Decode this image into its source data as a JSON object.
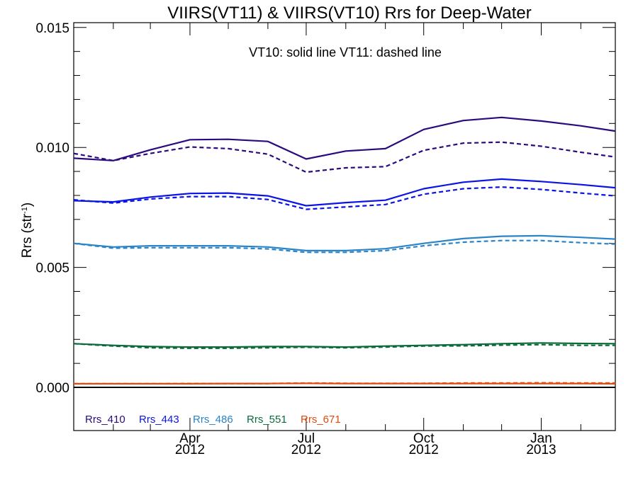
{
  "chart_data": {
    "type": "line",
    "title": "VIIRS(VT11) & VIIRS(VT10)  Rrs for Deep-Water",
    "annotation": "VT10: solid line   VT11: dashed line",
    "ylabel": "Rrs (str",
    "ylabel_sup": "-1",
    "ylabel_close": ")",
    "ylim": [
      -0.0018,
      0.0152
    ],
    "xlim": [
      "2012-01-01",
      "2013-02-28"
    ],
    "yticks": [
      {
        "value": 0.0,
        "label": "0.000"
      },
      {
        "value": 0.005,
        "label": "0.005"
      },
      {
        "value": 0.01,
        "label": "0.010"
      },
      {
        "value": 0.015,
        "label": "0.015"
      }
    ],
    "xticks": [
      {
        "date": "2012-04-01",
        "month": "Apr",
        "year": "2012"
      },
      {
        "date": "2012-07-01",
        "month": "Jul",
        "year": "2012"
      },
      {
        "date": "2012-10-01",
        "month": "Oct",
        "year": "2012"
      },
      {
        "date": "2013-01-01",
        "month": "Jan",
        "year": "2013"
      }
    ],
    "zero_line": 0.0,
    "x": [
      "2012-01-01",
      "2012-02-01",
      "2012-03-01",
      "2012-04-01",
      "2012-05-01",
      "2012-06-01",
      "2012-07-01",
      "2012-08-01",
      "2012-09-01",
      "2012-10-01",
      "2012-11-01",
      "2012-12-01",
      "2013-01-01",
      "2013-02-01",
      "2013-02-28"
    ],
    "series": [
      {
        "name": "Rrs_410",
        "color": "#2a0a7e",
        "vt10": [
          0.00955,
          0.00945,
          0.0099,
          0.01032,
          0.01034,
          0.01025,
          0.00952,
          0.00985,
          0.00995,
          0.01075,
          0.01112,
          0.01125,
          0.0111,
          0.0109,
          0.01068
        ],
        "vt11": [
          0.00975,
          0.00945,
          0.00975,
          0.01002,
          0.00995,
          0.00972,
          0.00897,
          0.00915,
          0.0092,
          0.00988,
          0.01018,
          0.01022,
          0.01005,
          0.0098,
          0.0096
        ]
      },
      {
        "name": "Rrs_443",
        "color": "#0a14e6",
        "vt10": [
          0.00778,
          0.00773,
          0.00793,
          0.00808,
          0.0081,
          0.00798,
          0.00757,
          0.0077,
          0.0078,
          0.00828,
          0.00855,
          0.00868,
          0.00858,
          0.00845,
          0.00832
        ],
        "vt11": [
          0.00782,
          0.00768,
          0.00785,
          0.00795,
          0.00795,
          0.00783,
          0.00742,
          0.00752,
          0.00762,
          0.00805,
          0.00828,
          0.00835,
          0.00825,
          0.0081,
          0.00798
        ]
      },
      {
        "name": "Rrs_486",
        "color": "#2a84c8",
        "vt10": [
          0.006,
          0.00585,
          0.0059,
          0.0059,
          0.0059,
          0.00585,
          0.0057,
          0.0057,
          0.00578,
          0.006,
          0.0062,
          0.0063,
          0.00632,
          0.00625,
          0.00618
        ],
        "vt11": [
          0.006,
          0.0058,
          0.00582,
          0.00582,
          0.00582,
          0.00577,
          0.00563,
          0.00563,
          0.0057,
          0.0059,
          0.00605,
          0.00612,
          0.00612,
          0.00603,
          0.00597
        ]
      },
      {
        "name": "Rrs_551",
        "color": "#0b6a3c",
        "vt10": [
          0.00182,
          0.00175,
          0.0017,
          0.00168,
          0.00168,
          0.0017,
          0.0017,
          0.00168,
          0.00172,
          0.00175,
          0.00178,
          0.00182,
          0.00185,
          0.00183,
          0.00182
        ],
        "vt11": [
          0.00182,
          0.00172,
          0.00165,
          0.00163,
          0.00163,
          0.00165,
          0.00167,
          0.00165,
          0.00168,
          0.00172,
          0.00173,
          0.00176,
          0.00178,
          0.00175,
          0.00175
        ]
      },
      {
        "name": "Rrs_671",
        "color": "#e24a0e",
        "vt10": [
          0.00015,
          0.00015,
          0.00015,
          0.00015,
          0.00016,
          0.00016,
          0.00017,
          0.00016,
          0.00016,
          0.00016,
          0.00016,
          0.00016,
          0.00016,
          0.00016,
          0.00015
        ],
        "vt11": [
          0.00015,
          0.00015,
          0.00015,
          0.00016,
          0.00016,
          0.00016,
          0.00018,
          0.00017,
          0.00017,
          0.00017,
          0.00018,
          0.00018,
          0.00019,
          0.00018,
          0.00018
        ]
      }
    ],
    "grid": false,
    "legend_position": "bottom-left"
  }
}
